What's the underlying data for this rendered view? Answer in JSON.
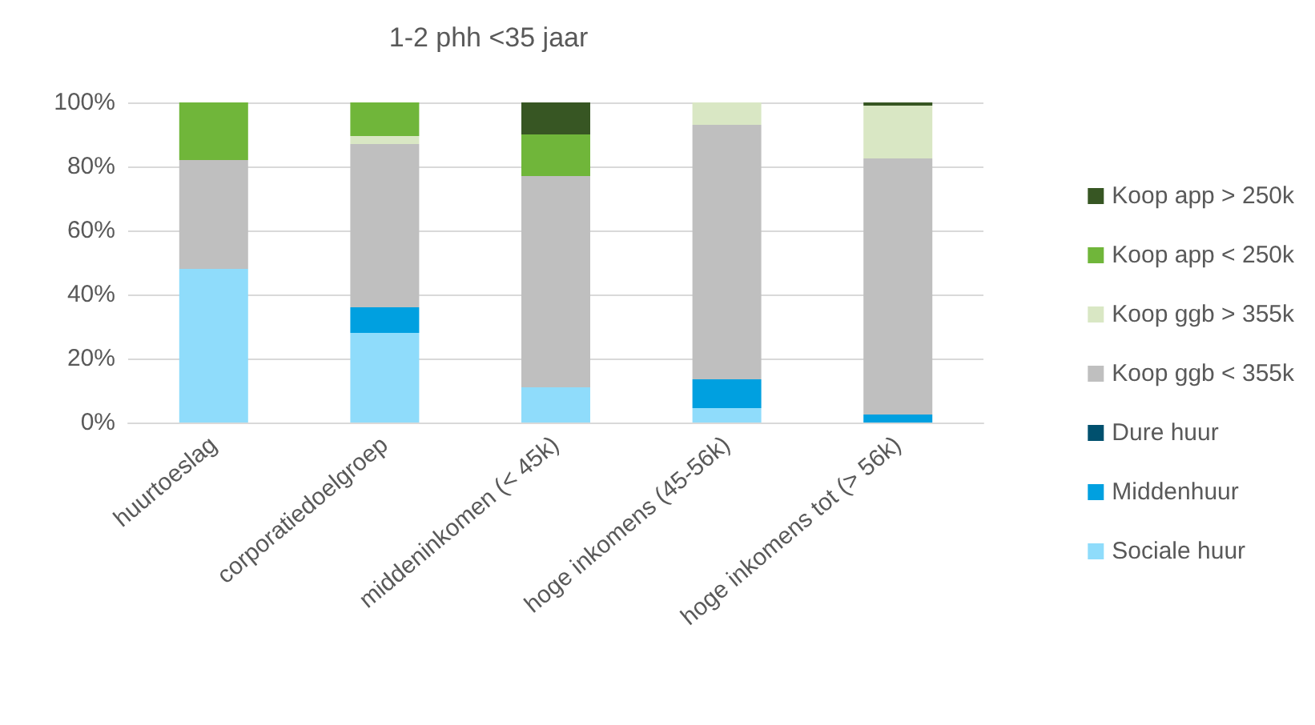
{
  "chart_data": {
    "type": "bar",
    "title": "1-2 phh <35 jaar",
    "stacked": true,
    "categories": [
      "huurtoeslag",
      "corporatiedoelgroep",
      "middeninkomen (< 45k)",
      "hoge inkomens (45-56k)",
      "hoge inkomens tot (> 56k)"
    ],
    "series": [
      {
        "name": "Sociale huur",
        "color": "#8fdcfb",
        "values": [
          48,
          28,
          11,
          4.5,
          0
        ]
      },
      {
        "name": "Middenhuur",
        "color": "#00a0e0",
        "values": [
          0,
          8,
          0,
          9,
          2.5
        ]
      },
      {
        "name": "Dure huur",
        "color": "#00506e",
        "values": [
          0,
          0,
          0,
          0,
          0
        ]
      },
      {
        "name": "Koop ggb < 355k",
        "color": "#bfbfbf",
        "values": [
          34,
          51,
          66,
          79.5,
          80
        ]
      },
      {
        "name": "Koop ggb > 355k",
        "color": "#d9e7c4",
        "values": [
          0,
          2.5,
          0,
          7,
          16.5
        ]
      },
      {
        "name": "Koop app < 250k",
        "color": "#70b63a",
        "values": [
          18,
          10.5,
          13,
          0,
          0
        ]
      },
      {
        "name": "Koop app > 250k",
        "color": "#375623",
        "values": [
          0,
          0,
          10,
          0,
          1
        ]
      }
    ],
    "ylim": [
      0,
      100
    ],
    "yticks": [
      {
        "value": 0,
        "label": "0%"
      },
      {
        "value": 20,
        "label": "20%"
      },
      {
        "value": 40,
        "label": "40%"
      },
      {
        "value": 60,
        "label": "60%"
      },
      {
        "value": 80,
        "label": "80%"
      },
      {
        "value": 100,
        "label": "100%"
      }
    ],
    "grid": "y",
    "legend": "right"
  }
}
